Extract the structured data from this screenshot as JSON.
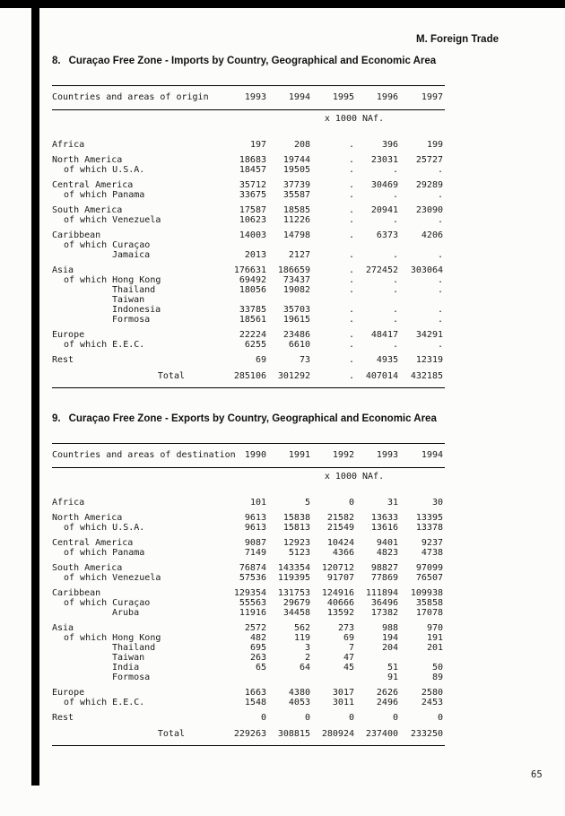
{
  "page": {
    "header": "M. Foreign Trade",
    "page_number": "65"
  },
  "tables": [
    {
      "number": "8.",
      "title": "Curaçao Free Zone - Imports by Country, Geographical and Economic Area",
      "stub_header": "Countries and areas of origin",
      "years": [
        "1993",
        "1994",
        "1995",
        "1996",
        "1997"
      ],
      "unit": "x 1000 NAf.",
      "rows": [
        {
          "label": "Africa",
          "indent": 0,
          "gap": true,
          "values": [
            "197",
            "208",
            ".",
            "396",
            "199"
          ]
        },
        {
          "label": "North America",
          "indent": 0,
          "gap": true,
          "values": [
            "18683",
            "19744",
            ".",
            "23031",
            "25727"
          ]
        },
        {
          "label": "of which U.S.A.",
          "indent": 1,
          "values": [
            "18457",
            "19505",
            ".",
            ".",
            "."
          ]
        },
        {
          "label": "Central America",
          "indent": 0,
          "gap": true,
          "values": [
            "35712",
            "37739",
            ".",
            "30469",
            "29289"
          ]
        },
        {
          "label": "of which Panama",
          "indent": 1,
          "values": [
            "33675",
            "35587",
            ".",
            ".",
            "."
          ]
        },
        {
          "label": "South America",
          "indent": 0,
          "gap": true,
          "values": [
            "17587",
            "18585",
            ".",
            "20941",
            "23090"
          ]
        },
        {
          "label": "of which Venezuela",
          "indent": 1,
          "values": [
            "10623",
            "11226",
            ".",
            ".",
            "."
          ]
        },
        {
          "label": "Caribbean",
          "indent": 0,
          "gap": true,
          "values": [
            "14003",
            "14798",
            ".",
            "6373",
            "4206"
          ]
        },
        {
          "label": "of which Curaçao",
          "indent": 1,
          "values": [
            "",
            "",
            "",
            "",
            ""
          ]
        },
        {
          "label": "Jamaica",
          "indent": 2,
          "values": [
            "2013",
            "2127",
            ".",
            ".",
            "."
          ]
        },
        {
          "label": "Asia",
          "indent": 0,
          "gap": true,
          "values": [
            "176631",
            "186659",
            ".",
            "272452",
            "303064"
          ]
        },
        {
          "label": "of which Hong Kong",
          "indent": 1,
          "values": [
            "69492",
            "73437",
            ".",
            ".",
            "."
          ]
        },
        {
          "label": "Thailand",
          "indent": 2,
          "values": [
            "18056",
            "19082",
            ".",
            ".",
            "."
          ]
        },
        {
          "label": "Taiwan",
          "indent": 2,
          "values": [
            "",
            "",
            "",
            "",
            ""
          ]
        },
        {
          "label": "Indonesia",
          "indent": 2,
          "values": [
            "33785",
            "35703",
            ".",
            ".",
            "."
          ]
        },
        {
          "label": "Formosa",
          "indent": 2,
          "values": [
            "18561",
            "19615",
            ".",
            ".",
            "."
          ]
        },
        {
          "label": "Europe",
          "indent": 0,
          "gap": true,
          "values": [
            "22224",
            "23486",
            ".",
            "48417",
            "34291"
          ]
        },
        {
          "label": "of which E.E.C.",
          "indent": 1,
          "values": [
            "6255",
            "6610",
            ".",
            ".",
            "."
          ]
        },
        {
          "label": "Rest",
          "indent": 0,
          "gap": true,
          "values": [
            "69",
            "73",
            ".",
            "4935",
            "12319"
          ]
        }
      ],
      "total": {
        "label": "Total",
        "values": [
          "285106",
          "301292",
          ".",
          "407014",
          "432185"
        ]
      }
    },
    {
      "number": "9.",
      "title": "Curaçao Free Zone - Exports by Country, Geographical and Economic Area",
      "stub_header": "Countries and areas of destination",
      "years": [
        "1990",
        "1991",
        "1992",
        "1993",
        "1994"
      ],
      "unit": "x 1000 NAf.",
      "rows": [
        {
          "label": "Africa",
          "indent": 0,
          "gap": true,
          "values": [
            "101",
            "5",
            "0",
            "31",
            "30"
          ]
        },
        {
          "label": "North America",
          "indent": 0,
          "gap": true,
          "values": [
            "9613",
            "15838",
            "21582",
            "13633",
            "13395"
          ]
        },
        {
          "label": "of which U.S.A.",
          "indent": 1,
          "values": [
            "9613",
            "15813",
            "21549",
            "13616",
            "13378"
          ]
        },
        {
          "label": "Central America",
          "indent": 0,
          "gap": true,
          "values": [
            "9087",
            "12923",
            "10424",
            "9401",
            "9237"
          ]
        },
        {
          "label": "of which Panama",
          "indent": 1,
          "values": [
            "7149",
            "5123",
            "4366",
            "4823",
            "4738"
          ]
        },
        {
          "label": "South America",
          "indent": 0,
          "gap": true,
          "values": [
            "76874",
            "143354",
            "120712",
            "98827",
            "97099"
          ]
        },
        {
          "label": "of which Venezuela",
          "indent": 1,
          "values": [
            "57536",
            "119395",
            "91707",
            "77869",
            "76507"
          ]
        },
        {
          "label": "Caribbean",
          "indent": 0,
          "gap": true,
          "values": [
            "129354",
            "131753",
            "124916",
            "111894",
            "109938"
          ]
        },
        {
          "label": "of which Curaçao",
          "indent": 1,
          "values": [
            "55563",
            "29679",
            "40666",
            "36496",
            "35858"
          ]
        },
        {
          "label": "Aruba",
          "indent": 2,
          "values": [
            "11916",
            "34458",
            "13592",
            "17382",
            "17078"
          ]
        },
        {
          "label": "Asia",
          "indent": 0,
          "gap": true,
          "values": [
            "2572",
            "562",
            "273",
            "988",
            "970"
          ]
        },
        {
          "label": "of which Hong Kong",
          "indent": 1,
          "values": [
            "482",
            "119",
            "69",
            "194",
            "191"
          ]
        },
        {
          "label": "Thailand",
          "indent": 2,
          "values": [
            "695",
            "3",
            "7",
            "204",
            "201"
          ]
        },
        {
          "label": "Taiwan",
          "indent": 2,
          "values": [
            "263",
            "2",
            "47",
            "",
            ""
          ]
        },
        {
          "label": "India",
          "indent": 2,
          "values": [
            "65",
            "64",
            "45",
            "51",
            "50"
          ]
        },
        {
          "label": "Formosa",
          "indent": 2,
          "values": [
            "",
            "",
            "",
            "91",
            "89"
          ]
        },
        {
          "label": "Europe",
          "indent": 0,
          "gap": true,
          "values": [
            "1663",
            "4380",
            "3017",
            "2626",
            "2580"
          ]
        },
        {
          "label": "of which E.E.C.",
          "indent": 1,
          "values": [
            "1548",
            "4053",
            "3011",
            "2496",
            "2453"
          ]
        },
        {
          "label": "Rest",
          "indent": 0,
          "gap": true,
          "values": [
            "0",
            "0",
            "0",
            "0",
            "0"
          ]
        }
      ],
      "total": {
        "label": "Total",
        "values": [
          "229263",
          "308815",
          "280924",
          "237400",
          "233250"
        ]
      }
    }
  ]
}
